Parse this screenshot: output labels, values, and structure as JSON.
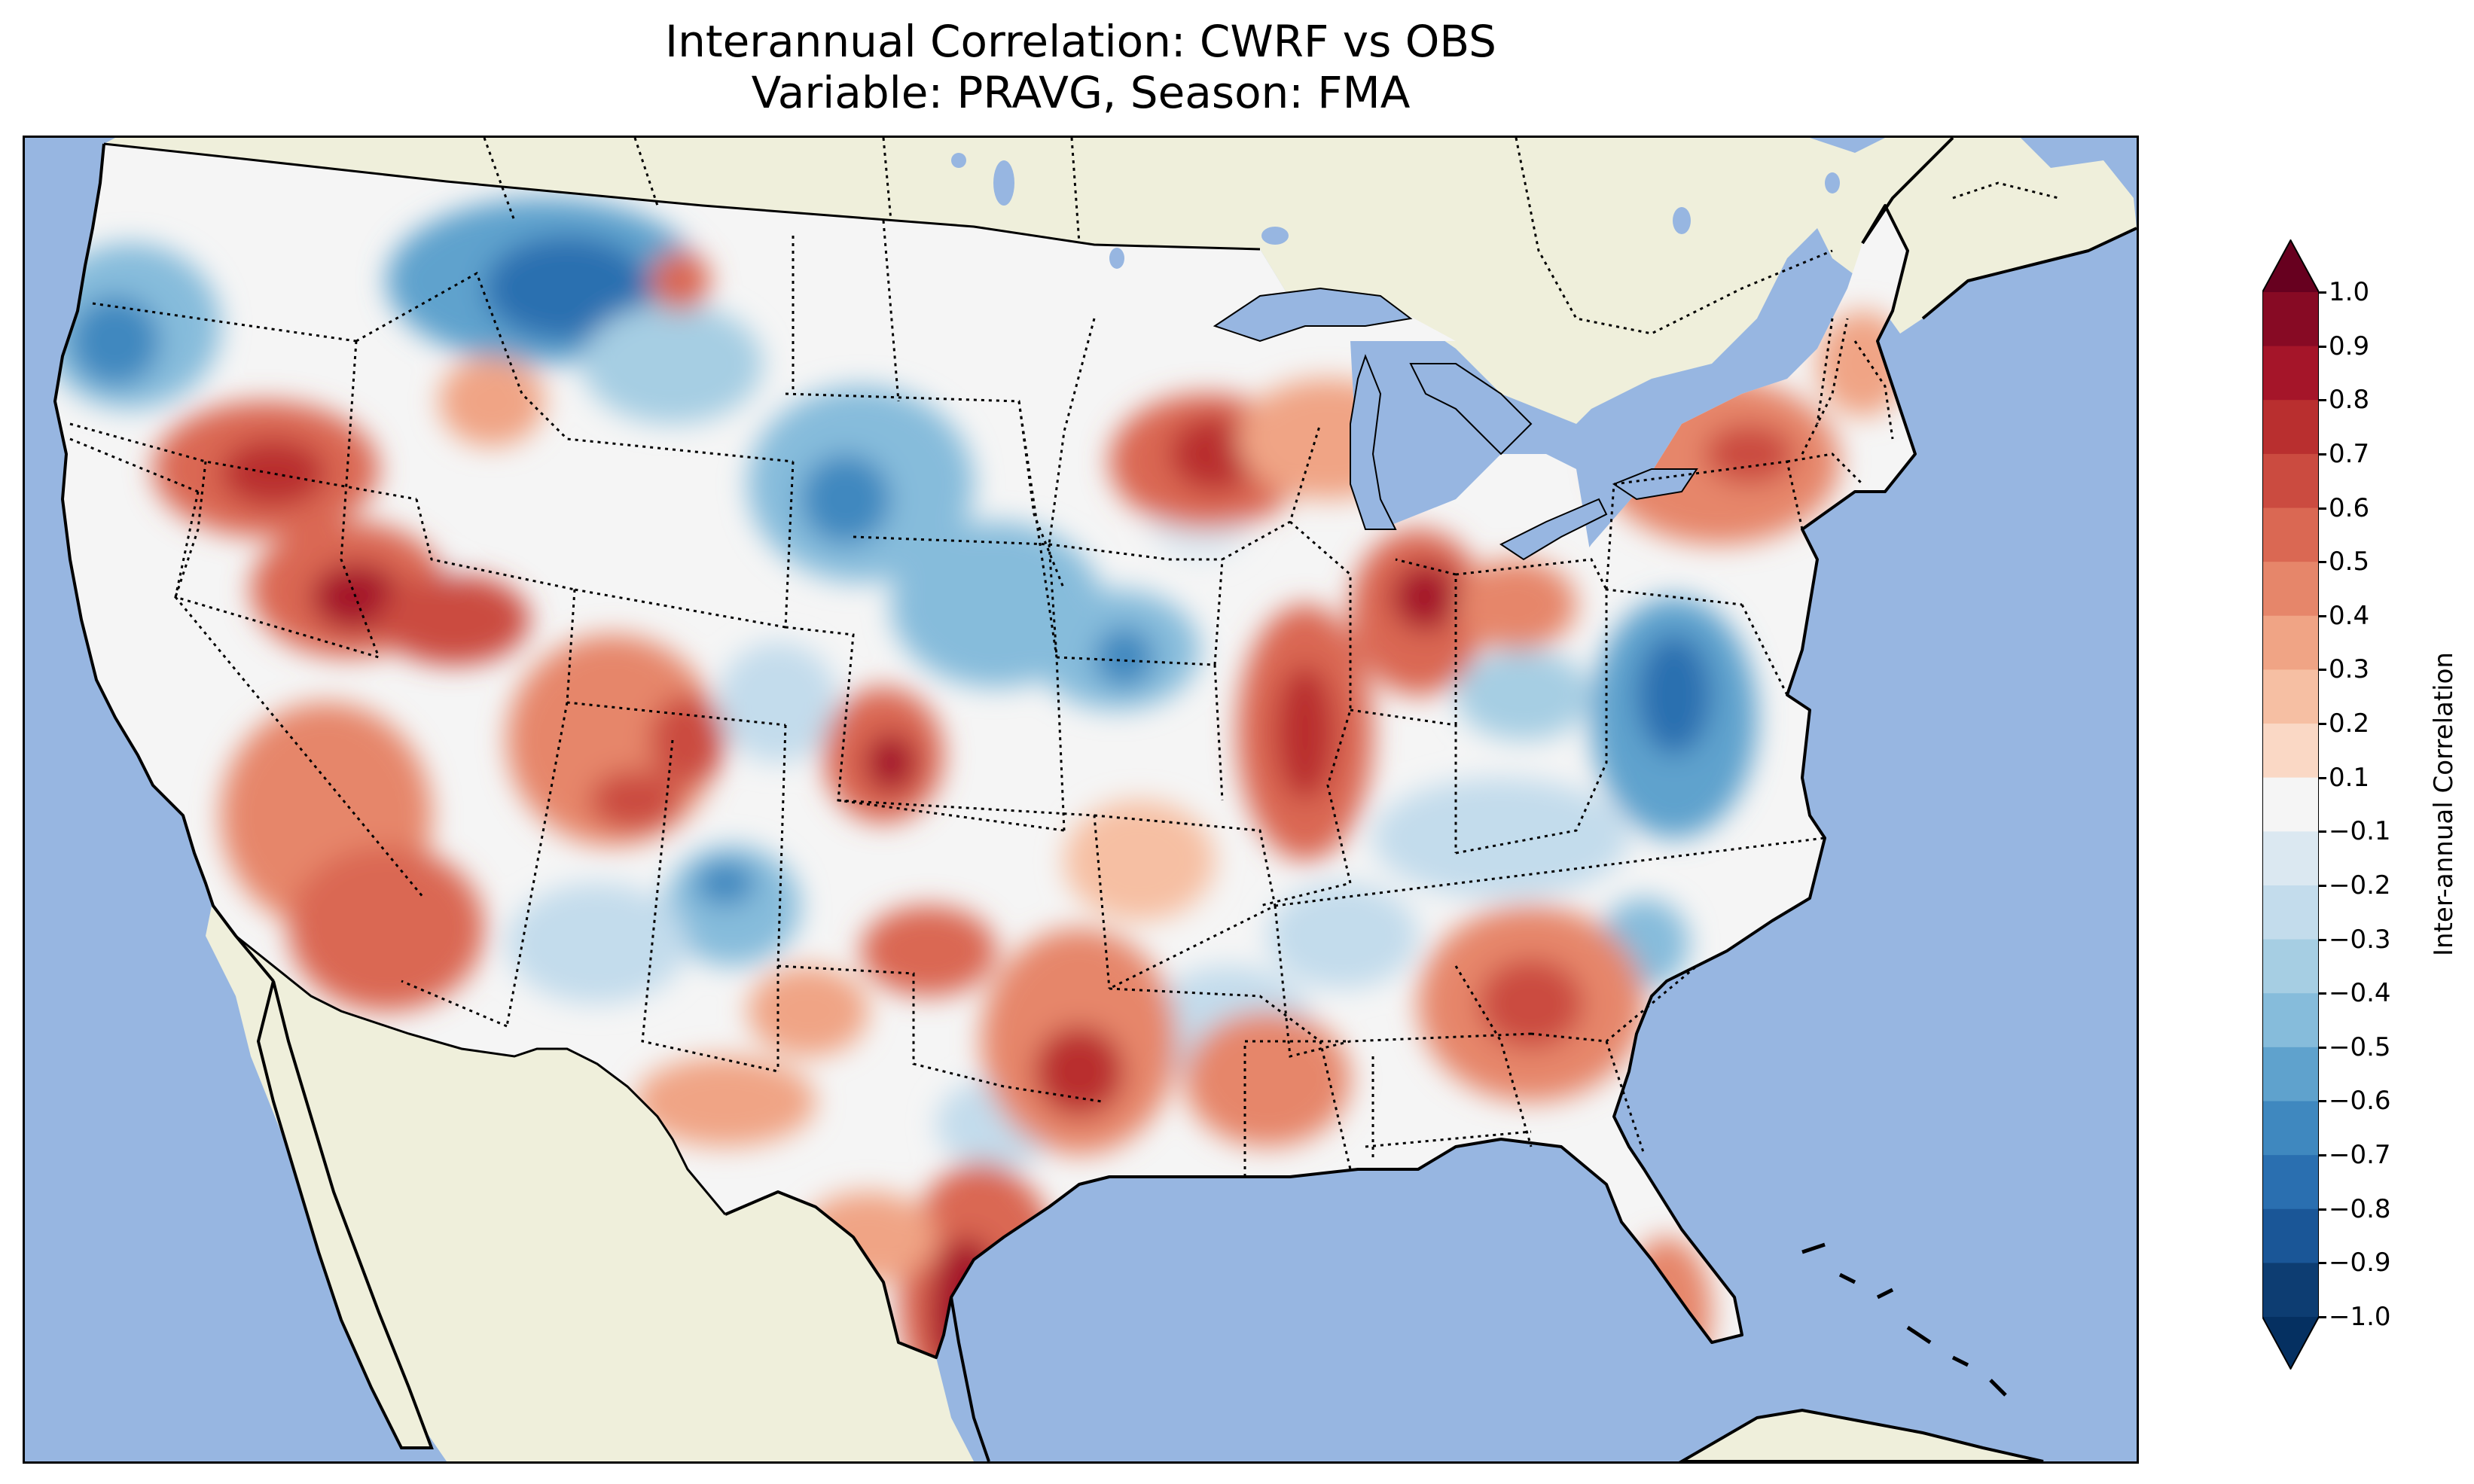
{
  "title": {
    "line1": "Interannual Correlation: CWRF vs OBS",
    "line2": "Variable: PRAVG, Season: FMA"
  },
  "map": {
    "region": "Contiguous United States",
    "ocean_color": "#97b6e1",
    "land_color": "#efefdb",
    "coastline_color": "#000000",
    "borders": "country borders solid black, state borders dotted black"
  },
  "colorbar": {
    "label": "Inter-annual Correlation",
    "colormap": "RdBu_r",
    "extend": "both",
    "ticks": [
      "1.0",
      "0.9",
      "0.8",
      "0.7",
      "0.6",
      "0.5",
      "0.4",
      "0.3",
      "0.2",
      "0.1",
      "−0.1",
      "−0.2",
      "−0.3",
      "−0.4",
      "−0.5",
      "−0.6",
      "−0.7",
      "−0.8",
      "−0.9",
      "−1.0"
    ],
    "colors": [
      "#67001f",
      "#870a24",
      "#a51529",
      "#b92f2f",
      "#cb4b40",
      "#da6853",
      "#e6866a",
      "#f0a485",
      "#f6bfa3",
      "#fad8c5",
      "#f5f5f5",
      "#dbe8f1",
      "#c3dcec",
      "#a6cee3",
      "#86bcdb",
      "#5fa2cd",
      "#3f88bf",
      "#2a6fb0",
      "#1a5697",
      "#0d3d72",
      "#053061"
    ]
  },
  "chart_data": {
    "type": "heatmap",
    "title": "Interannual Correlation: CWRF vs OBS\nVariable: PRAVG, Season: FMA",
    "variable": "PRAVG",
    "season": "FMA",
    "colorbar_label": "Inter-annual Correlation",
    "value_range": [
      -1.0,
      1.0
    ],
    "levels": [
      -1.0,
      -0.9,
      -0.8,
      -0.7,
      -0.6,
      -0.5,
      -0.4,
      -0.3,
      -0.2,
      -0.1,
      0.1,
      0.2,
      0.3,
      0.4,
      0.5,
      0.6,
      0.7,
      0.8,
      0.9,
      1.0
    ],
    "regional_values": [
      {
        "region": "Southeast Texas Gulf Coast",
        "value": 0.8
      },
      {
        "region": "North Texas",
        "value": 0.7
      },
      {
        "region": "Nevada / Utah",
        "value": 0.7
      },
      {
        "region": "Southern Oregon / Northern California",
        "value": 0.6
      },
      {
        "region": "Illinois",
        "value": 0.6
      },
      {
        "region": "Michigan",
        "value": 0.6
      },
      {
        "region": "Wisconsin",
        "value": 0.6
      },
      {
        "region": "Georgia",
        "value": 0.5
      },
      {
        "region": "Southern Florida",
        "value": 0.5
      },
      {
        "region": "Arizona",
        "value": 0.5
      },
      {
        "region": "New York / Pennsylvania",
        "value": 0.5
      },
      {
        "region": "Western Kansas",
        "value": 0.6
      },
      {
        "region": "Montana / Northern Idaho",
        "value": -0.6
      },
      {
        "region": "Washington coast",
        "value": -0.5
      },
      {
        "region": "South Dakota",
        "value": -0.5
      },
      {
        "region": "Iowa / Nebraska",
        "value": -0.5
      },
      {
        "region": "Virginia / Maryland",
        "value": -0.7
      },
      {
        "region": "Northern New Mexico",
        "value": -0.4
      },
      {
        "region": "Kentucky / Tennessee",
        "value": -0.3
      }
    ]
  }
}
